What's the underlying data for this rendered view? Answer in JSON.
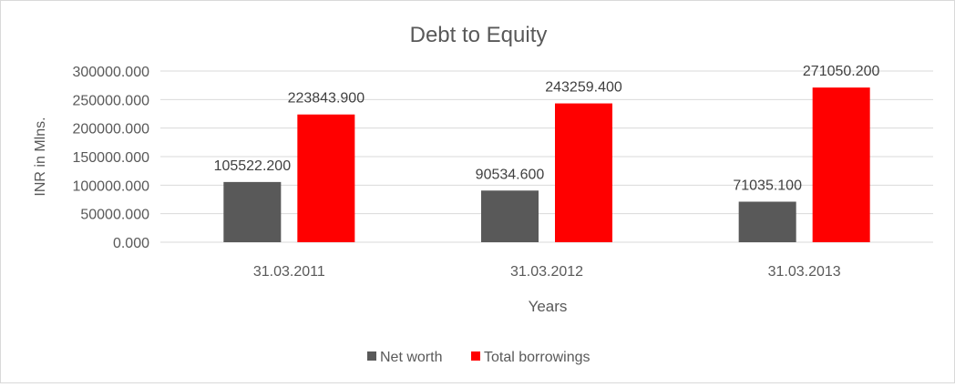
{
  "chart_data": {
    "type": "bar",
    "title": "Debt to Equity",
    "xlabel": "Years",
    "ylabel": "INR in Mlns.",
    "categories": [
      "31.03.2011",
      "31.03.2012",
      "31.03.2013"
    ],
    "series": [
      {
        "name": "Net worth",
        "color": "#595959",
        "values": [
          105522.2,
          90534.6,
          71035.1
        ],
        "labels": [
          "105522.200",
          "90534.600",
          "71035.100"
        ]
      },
      {
        "name": "Total borrowings",
        "color": "#ff0000",
        "values": [
          223843.9,
          243259.4,
          271050.2
        ],
        "labels": [
          "223843.900",
          "243259.400",
          "271050.200"
        ]
      }
    ],
    "ylim": [
      0,
      300000
    ],
    "yticks": [
      0,
      50000,
      100000,
      150000,
      200000,
      250000,
      300000
    ],
    "ytick_labels": [
      "0.000",
      "50000.000",
      "100000.000",
      "150000.000",
      "200000.000",
      "250000.000",
      "300000.000"
    ],
    "grid": true,
    "legend_position": "bottom"
  }
}
